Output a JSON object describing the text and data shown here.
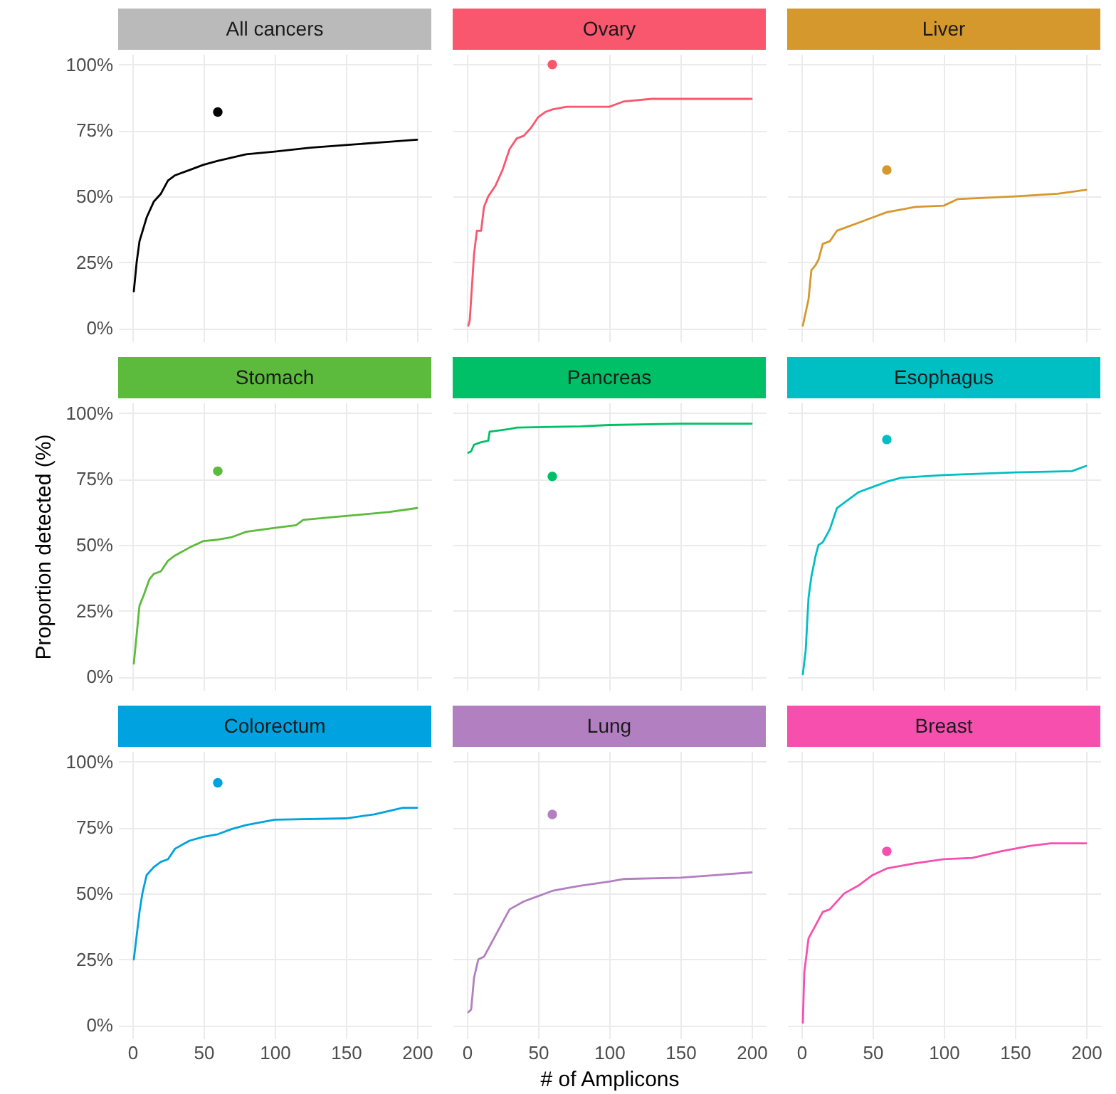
{
  "chart_data": [
    {
      "type": "line",
      "title": "All cancers",
      "tick_labels": "y",
      "grid": true,
      "xlim": [
        -10,
        210
      ],
      "ylim": [
        -5,
        104
      ],
      "xticks": [
        0,
        50,
        100,
        150,
        200
      ],
      "yticks": [
        {
          "value": 0,
          "label": "0%"
        },
        {
          "value": 25,
          "label": "25%"
        },
        {
          "value": 50,
          "label": "50%"
        },
        {
          "value": 75,
          "label": "75%"
        },
        {
          "value": 100,
          "label": "100%"
        }
      ],
      "series": [
        {
          "color": "#000000",
          "x": [
            1,
            3,
            5,
            10,
            15,
            20,
            25,
            30,
            40,
            50,
            60,
            80,
            100,
            125,
            150,
            175,
            200
          ],
          "values": [
            14,
            25,
            33,
            42,
            48,
            51,
            56,
            58,
            60,
            62,
            63.5,
            66,
            67,
            68.5,
            69.5,
            70.5,
            71.5
          ]
        },
        {
          "type": "scatter",
          "color": "#000000",
          "x": [
            60
          ],
          "values": [
            82
          ]
        }
      ]
    },
    {
      "type": "line",
      "title": "Ovary",
      "tick_labels": false,
      "grid": true,
      "xlim": [
        -10,
        210
      ],
      "ylim": [
        -5,
        104
      ],
      "xticks": [
        0,
        50,
        100,
        150,
        200
      ],
      "yticks": [
        0,
        25,
        50,
        75,
        100
      ],
      "series": [
        {
          "color": "#f8576e",
          "x": [
            1,
            2,
            5,
            7,
            10,
            12,
            15,
            20,
            25,
            30,
            35,
            40,
            45,
            50,
            55,
            60,
            70,
            100,
            110,
            130,
            200
          ],
          "values": [
            1,
            3,
            28,
            37,
            37,
            46,
            50,
            54,
            60,
            68,
            72,
            73,
            76,
            80,
            82,
            83,
            84,
            84,
            86,
            87,
            87
          ]
        },
        {
          "type": "scatter",
          "color": "#f8576e",
          "x": [
            60
          ],
          "values": [
            100
          ]
        }
      ]
    },
    {
      "type": "line",
      "title": "Liver",
      "tick_labels": false,
      "grid": true,
      "xlim": [
        -10,
        210
      ],
      "ylim": [
        -5,
        104
      ],
      "xticks": [
        0,
        50,
        100,
        150,
        200
      ],
      "yticks": [
        0,
        25,
        50,
        75,
        100
      ],
      "series": [
        {
          "color": "#d4982c",
          "x": [
            1,
            3,
            5,
            7,
            10,
            12,
            15,
            20,
            25,
            30,
            40,
            50,
            60,
            70,
            80,
            100,
            110,
            150,
            180,
            200
          ],
          "values": [
            1,
            6,
            11,
            22,
            24,
            26,
            32,
            33,
            37,
            38,
            40,
            42,
            44,
            45,
            46,
            46.5,
            49,
            50,
            51,
            52.5
          ]
        },
        {
          "type": "scatter",
          "color": "#d4982c",
          "x": [
            60
          ],
          "values": [
            60
          ]
        }
      ]
    },
    {
      "type": "line",
      "title": "Stomach",
      "ylabel": "Proportion detected (%)",
      "tick_labels": "y",
      "grid": true,
      "xlim": [
        -10,
        210
      ],
      "ylim": [
        -5,
        104
      ],
      "xticks": [
        0,
        50,
        100,
        150,
        200
      ],
      "yticks": [
        {
          "value": 0,
          "label": "0%"
        },
        {
          "value": 25,
          "label": "25%"
        },
        {
          "value": 50,
          "label": "50%"
        },
        {
          "value": 75,
          "label": "75%"
        },
        {
          "value": 100,
          "label": "100%"
        }
      ],
      "series": [
        {
          "color": "#5cba3c",
          "x": [
            1,
            5,
            8,
            12,
            15,
            20,
            25,
            30,
            40,
            50,
            60,
            70,
            80,
            100,
            115,
            120,
            140,
            160,
            180,
            200
          ],
          "values": [
            5,
            27,
            31,
            37,
            39,
            40,
            44,
            46,
            49,
            51.5,
            52,
            53,
            55,
            56.5,
            57.5,
            59.5,
            60.5,
            61.5,
            62.5,
            64
          ]
        },
        {
          "type": "scatter",
          "color": "#5cba3c",
          "x": [
            60
          ],
          "values": [
            78
          ]
        }
      ]
    },
    {
      "type": "line",
      "title": "Pancreas",
      "tick_labels": false,
      "grid": true,
      "xlim": [
        -10,
        210
      ],
      "ylim": [
        -5,
        104
      ],
      "xticks": [
        0,
        50,
        100,
        150,
        200
      ],
      "yticks": [
        0,
        25,
        50,
        75,
        100
      ],
      "series": [
        {
          "color": "#00c067",
          "x": [
            1,
            3,
            5,
            10,
            15,
            16,
            30,
            35,
            80,
            100,
            150,
            200
          ],
          "values": [
            85,
            85.5,
            88,
            89,
            89.5,
            93,
            94,
            94.5,
            95,
            95.5,
            96,
            96
          ]
        },
        {
          "type": "scatter",
          "color": "#00c067",
          "x": [
            60
          ],
          "values": [
            76
          ]
        }
      ]
    },
    {
      "type": "line",
      "title": "Esophagus",
      "tick_labels": false,
      "grid": true,
      "xlim": [
        -10,
        210
      ],
      "ylim": [
        -5,
        104
      ],
      "xticks": [
        0,
        50,
        100,
        150,
        200
      ],
      "yticks": [
        0,
        25,
        50,
        75,
        100
      ],
      "series": [
        {
          "color": "#00bfc4",
          "x": [
            1,
            3,
            5,
            7,
            10,
            12,
            15,
            20,
            25,
            30,
            40,
            50,
            60,
            70,
            100,
            150,
            190,
            200
          ],
          "values": [
            1,
            10,
            30,
            38,
            46,
            50,
            51,
            56,
            64,
            66,
            70,
            72,
            74,
            75.5,
            76.5,
            77.5,
            78,
            80
          ]
        },
        {
          "type": "scatter",
          "color": "#00bfc4",
          "x": [
            60
          ],
          "values": [
            90
          ]
        }
      ]
    },
    {
      "type": "line",
      "title": "Colorectum",
      "grid": true,
      "xlim": [
        -10,
        210
      ],
      "ylim": [
        -5,
        104
      ],
      "xticks": [
        0,
        50,
        100,
        150,
        200
      ],
      "yticks": [
        {
          "value": 0,
          "label": "0%"
        },
        {
          "value": 25,
          "label": "25%"
        },
        {
          "value": 50,
          "label": "50%"
        },
        {
          "value": 75,
          "label": "75%"
        },
        {
          "value": 100,
          "label": "100%"
        }
      ],
      "series": [
        {
          "color": "#00a2df",
          "x": [
            1,
            5,
            7,
            10,
            15,
            20,
            25,
            30,
            40,
            50,
            60,
            70,
            80,
            100,
            150,
            170,
            190,
            200
          ],
          "values": [
            25,
            43,
            50,
            57,
            60,
            62,
            63,
            67,
            70,
            71.5,
            72.5,
            74.5,
            76,
            78,
            78.5,
            80,
            82.5,
            82.5
          ]
        },
        {
          "type": "scatter",
          "color": "#00a2df",
          "x": [
            60
          ],
          "values": [
            92
          ]
        }
      ]
    },
    {
      "type": "line",
      "title": "Lung",
      "xlabel": "# of Amplicons",
      "tick_labels": "x",
      "grid": true,
      "xlim": [
        -10,
        210
      ],
      "ylim": [
        -5,
        104
      ],
      "xticks": [
        0,
        50,
        100,
        150,
        200
      ],
      "yticks": [
        0,
        25,
        50,
        75,
        100
      ],
      "series": [
        {
          "color": "#b27fc0",
          "x": [
            1,
            3,
            5,
            8,
            12,
            15,
            20,
            25,
            30,
            40,
            50,
            60,
            70,
            80,
            100,
            110,
            150,
            200
          ],
          "values": [
            5,
            6,
            18,
            25,
            26,
            29,
            34,
            39,
            44,
            47,
            49,
            51,
            52,
            53,
            54.5,
            55.5,
            56,
            58
          ]
        },
        {
          "type": "scatter",
          "color": "#b27fc0",
          "x": [
            60
          ],
          "values": [
            80
          ]
        }
      ]
    },
    {
      "type": "line",
      "title": "Breast",
      "tick_labels": "x",
      "grid": true,
      "xlim": [
        -10,
        210
      ],
      "ylim": [
        -5,
        104
      ],
      "xticks": [
        0,
        50,
        100,
        150,
        200
      ],
      "yticks": [
        0,
        25,
        50,
        75,
        100
      ],
      "series": [
        {
          "color": "#f74fae",
          "x": [
            1,
            2,
            5,
            10,
            15,
            20,
            30,
            40,
            50,
            60,
            80,
            100,
            120,
            140,
            160,
            175,
            200
          ],
          "values": [
            1,
            20,
            33,
            38,
            43,
            44,
            50,
            53,
            57,
            59.5,
            61.5,
            63,
            63.5,
            66,
            68,
            69,
            69
          ]
        },
        {
          "type": "scatter",
          "color": "#f74fae",
          "x": [
            60
          ],
          "values": [
            66
          ]
        }
      ]
    }
  ]
}
